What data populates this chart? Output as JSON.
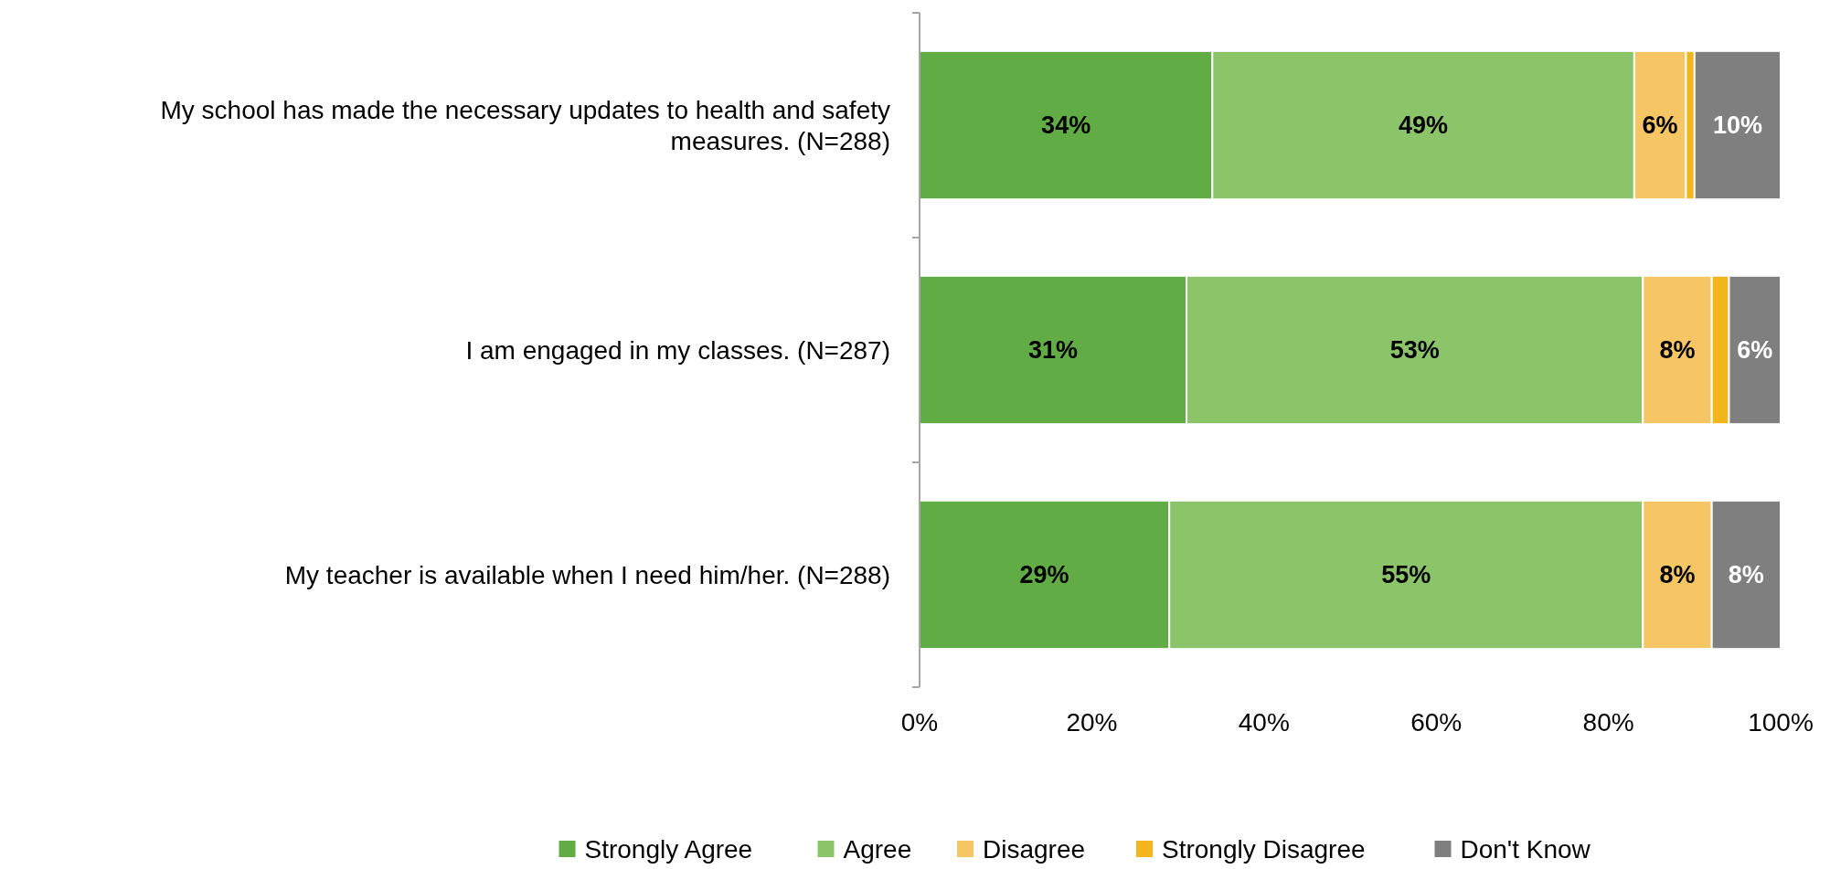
{
  "chart_data": {
    "type": "bar",
    "orientation": "horizontal",
    "stacked": true,
    "categories": [
      "My school has made the necessary updates to health and safety measures. (N=288)",
      "I am engaged in my classes. (N=287)",
      "My teacher is available when I need him/her. (N=288)"
    ],
    "series": [
      {
        "name": "Strongly Agree",
        "color": "#62ac46",
        "values": [
          34,
          31,
          29
        ],
        "value_labels": [
          "34%",
          "31%",
          "29%"
        ]
      },
      {
        "name": "Agree",
        "color": "#8cc46a",
        "values": [
          49,
          53,
          55
        ],
        "value_labels": [
          "49%",
          "53%",
          "55%"
        ]
      },
      {
        "name": "Disagree",
        "color": "#f6c664",
        "values": [
          6,
          8,
          8
        ],
        "value_labels": [
          "6%",
          "8%",
          "8%"
        ]
      },
      {
        "name": "Strongly Disagree",
        "color": "#f2b61c",
        "values": [
          1,
          2,
          null
        ],
        "value_labels": [
          null,
          null,
          null
        ]
      },
      {
        "name": "Don't Know",
        "color": "#7f7f7f",
        "values": [
          10,
          6,
          8
        ],
        "value_labels": [
          "10%",
          "6%",
          "8%"
        ]
      }
    ],
    "xlim": [
      0,
      100
    ],
    "xticks": [
      {
        "value": 0,
        "label": "0%"
      },
      {
        "value": 20,
        "label": "20%"
      },
      {
        "value": 40,
        "label": "40%"
      },
      {
        "value": 60,
        "label": "60%"
      },
      {
        "value": 80,
        "label": "80%"
      },
      {
        "value": 100,
        "label": "100%"
      }
    ],
    "grid": false,
    "legend": "bottom"
  }
}
